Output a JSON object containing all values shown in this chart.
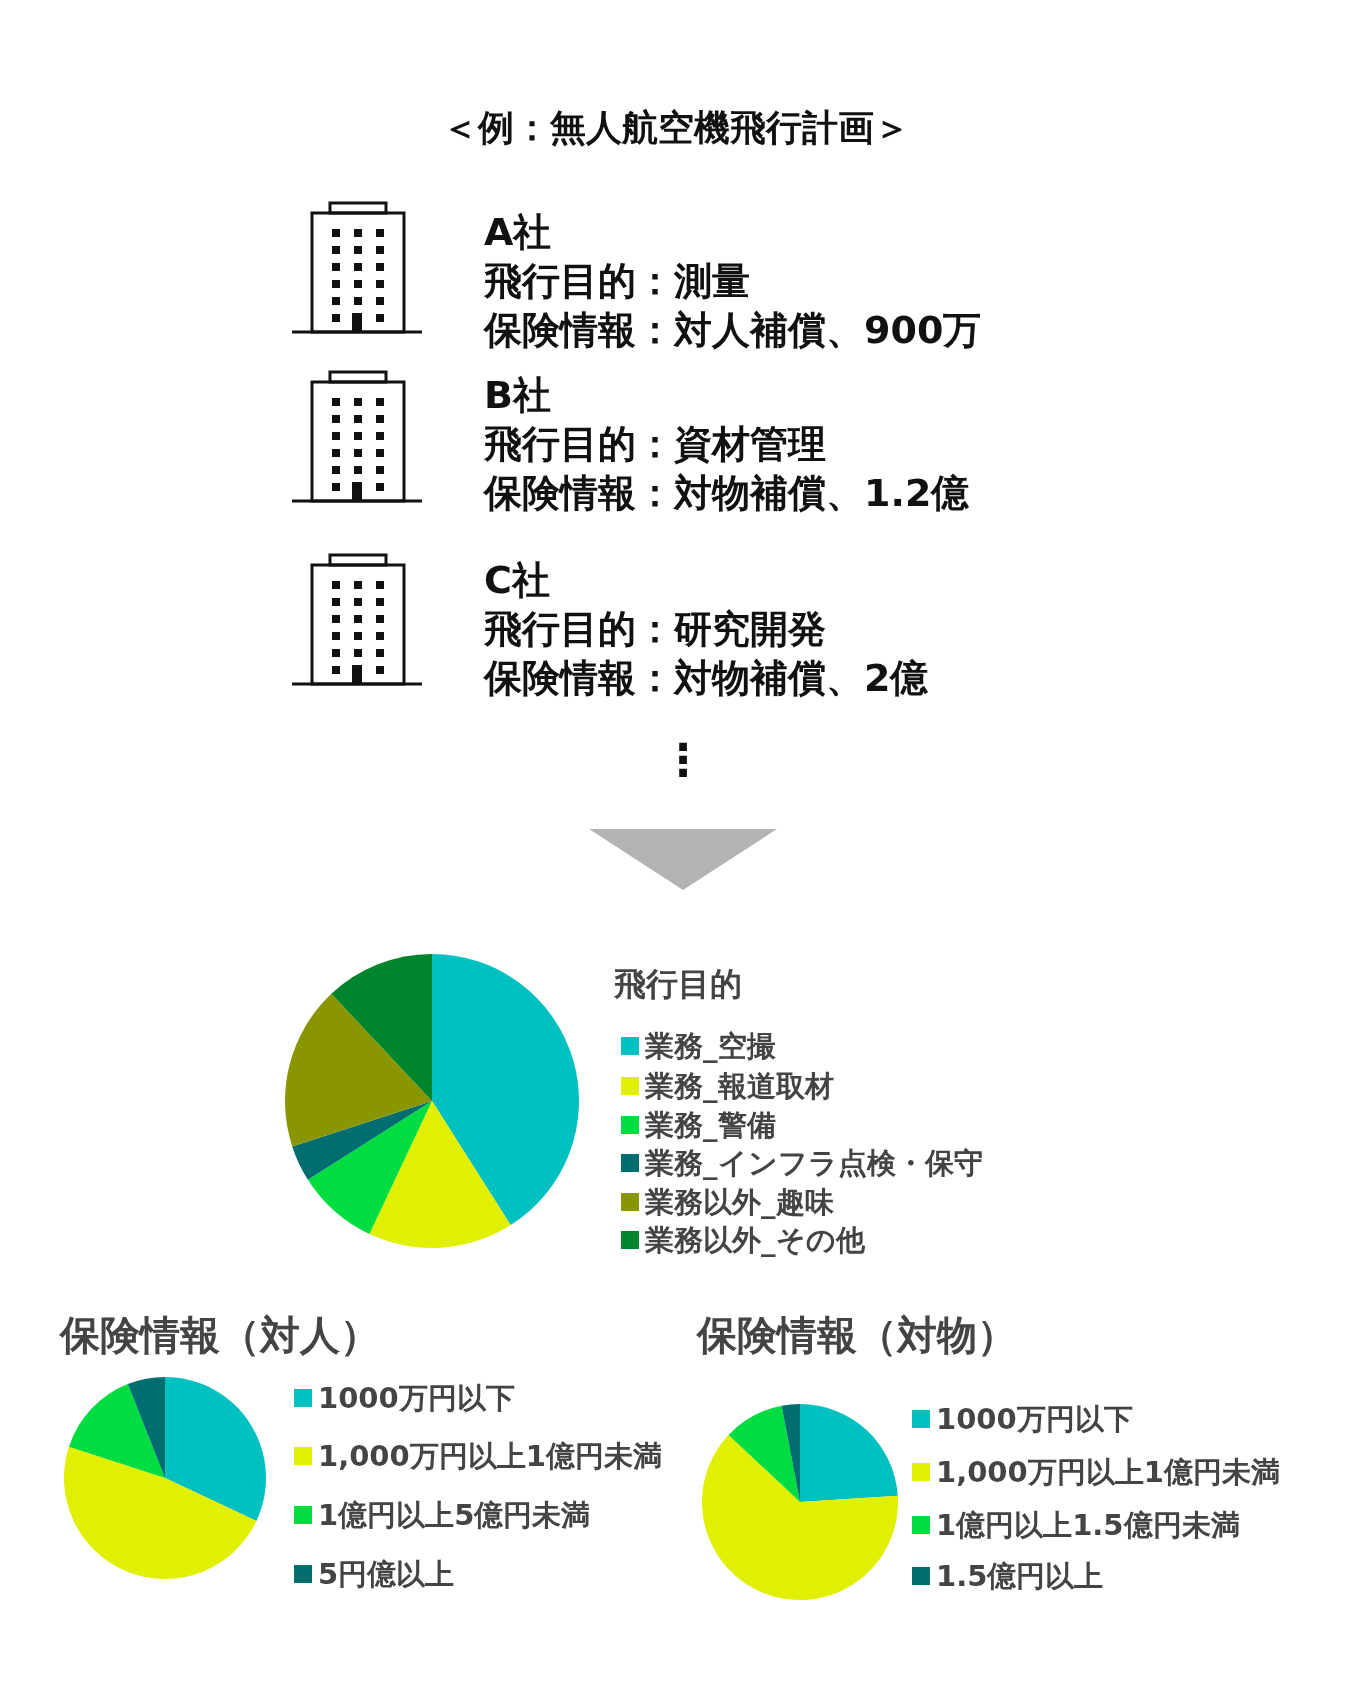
{
  "chart_data": [
    {
      "type": "other",
      "title": "＜例：無人航空機飛行計画＞",
      "annotations": [
        "A社",
        "飛行目的：測量",
        "保険情報：対人補償、900万",
        "B社",
        "飛行目的：資材管理",
        "保険情報：対物補償、1.2億",
        "C社",
        "飛行目的：研究開発",
        "保険情報：対物補償、2億",
        "⋮"
      ]
    },
    {
      "type": "pie",
      "title": "飛行目的",
      "categories": [
        "業務_空撮",
        "業務_報道取材",
        "業務_警備",
        "業務_インフラ点検・保守",
        "業務以外_趣味",
        "業務以外_その他"
      ],
      "values": [
        41,
        16,
        9,
        4,
        18,
        12
      ],
      "colors": [
        "#00c0c0",
        "#e0f000",
        "#00dd40",
        "#006e70",
        "#8a9600",
        "#00842c"
      ],
      "legend": "right"
    },
    {
      "type": "pie",
      "title": "保険情報（対人）",
      "categories": [
        "1000万円以下",
        "1,000万円以上1億円未満",
        "1億円以上5億円未満",
        "5円億以上"
      ],
      "values": [
        32,
        48,
        14,
        6
      ],
      "colors": [
        "#00c0c0",
        "#e0f000",
        "#00dd40",
        "#006e70"
      ],
      "legend": "right"
    },
    {
      "type": "pie",
      "title": "保険情報（対物）",
      "categories": [
        "1000万円以下",
        "1,000万円以上1億円未満",
        "1億円以上1.5億円未満",
        "1.5億円以上"
      ],
      "values": [
        24,
        63,
        10,
        3
      ],
      "colors": [
        "#00c0c0",
        "#e0f000",
        "#00dd40",
        "#006e70"
      ],
      "legend": "right"
    }
  ]
}
